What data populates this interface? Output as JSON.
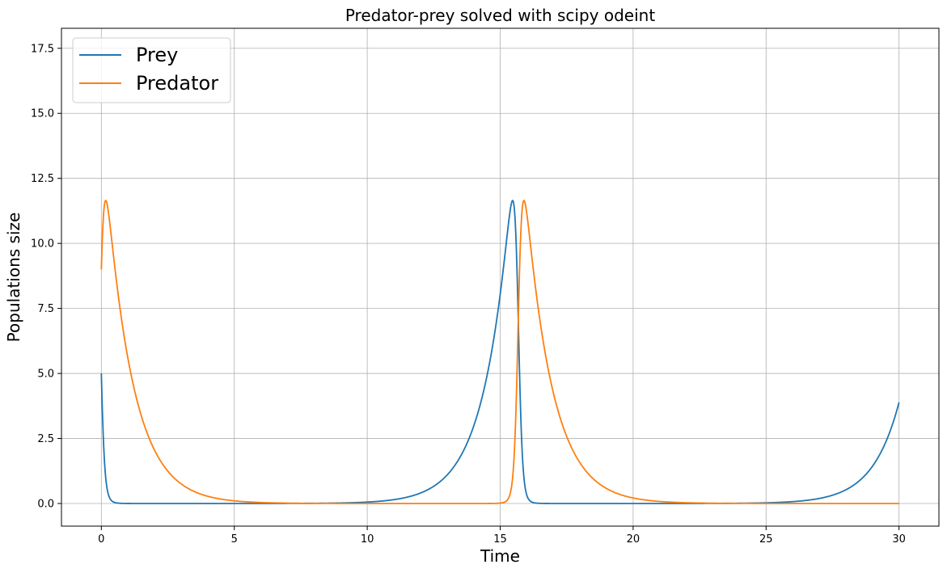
{
  "chart_data": {
    "type": "line",
    "title": "Predator-prey solved with scipy odeint",
    "xlabel": "Time",
    "ylabel": "Populations size",
    "xlim": [
      -1.5,
      31.5
    ],
    "ylim": [
      -0.87,
      18.27
    ],
    "xticks": [
      0,
      5,
      10,
      15,
      20,
      25,
      30
    ],
    "yticks": [
      0.0,
      2.5,
      5.0,
      7.5,
      10.0,
      12.5,
      15.0,
      17.5
    ],
    "xtick_labels": [
      "0",
      "5",
      "10",
      "15",
      "20",
      "25",
      "30"
    ],
    "ytick_labels": [
      "0.0",
      "2.5",
      "5.0",
      "7.5",
      "10.0",
      "12.5",
      "15.0",
      "17.5"
    ],
    "grid": true,
    "legend": "upper-left",
    "model": {
      "a": 1,
      "b": 1,
      "c": 1,
      "d": 1,
      "prey0": 5,
      "predator0": 9,
      "t_start": 0,
      "t_end": 30
    },
    "series": [
      {
        "name": "Prey",
        "color": "#1f77b4"
      },
      {
        "name": "Predator",
        "color": "#ff7f0e"
      }
    ]
  }
}
